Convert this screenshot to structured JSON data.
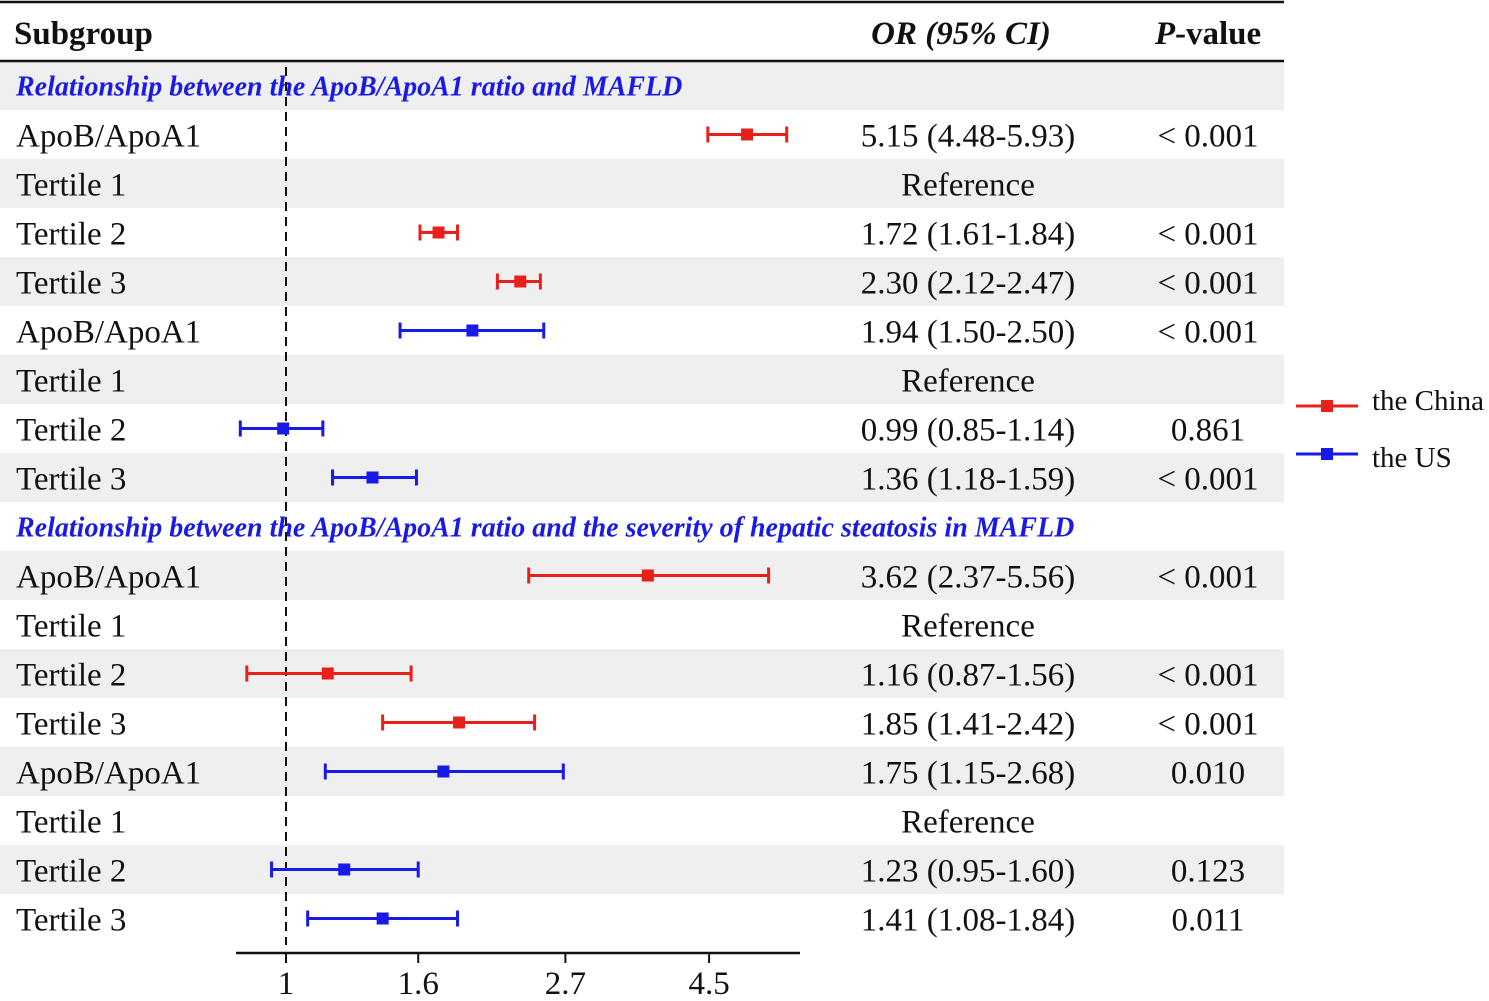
{
  "header": {
    "subgroup": "Subgroup",
    "or": "OR (95% CI)",
    "p_italic": "P",
    "p_rest": "-value"
  },
  "legend": [
    {
      "name": "the China",
      "color": "#e8201a"
    },
    {
      "name": "the US",
      "color": "#1a1ae6"
    }
  ],
  "colors": {
    "china": "#e8201a",
    "us": "#1a1ae6",
    "section_title": "#1a1ae6",
    "stripe": "#efefef"
  },
  "chart_data": {
    "type": "forest",
    "reference_line": 1,
    "x_ticks": [
      "1",
      "1.6",
      "2.7",
      "4.5"
    ],
    "x_scale": "log",
    "xlim": [
      0.82,
      5.7
    ],
    "rows": [
      {
        "kind": "section",
        "label": "Relationship between the ApoB/ApoA1 ratio and MAFLD"
      },
      {
        "kind": "data",
        "label": "ApoB/ApoA1",
        "series": "the China",
        "or": 5.15,
        "lo": 4.48,
        "hi": 5.93,
        "ci_text": "5.15 (4.48-5.93)",
        "p": "< 0.001"
      },
      {
        "kind": "ref",
        "label": "Tertile 1",
        "ci_text": "Reference",
        "p": ""
      },
      {
        "kind": "data",
        "label": "Tertile 2",
        "series": "the China",
        "or": 1.72,
        "lo": 1.61,
        "hi": 1.84,
        "ci_text": "1.72 (1.61-1.84)",
        "p": "< 0.001"
      },
      {
        "kind": "data",
        "label": "Tertile 3",
        "series": "the China",
        "or": 2.3,
        "lo": 2.12,
        "hi": 2.47,
        "ci_text": "2.30 (2.12-2.47)",
        "p": "< 0.001"
      },
      {
        "kind": "data",
        "label": "ApoB/ApoA1",
        "series": "the US",
        "or": 1.94,
        "lo": 1.5,
        "hi": 2.5,
        "ci_text": "1.94 (1.50-2.50)",
        "p": "< 0.001"
      },
      {
        "kind": "ref",
        "label": "Tertile 1",
        "ci_text": "Reference",
        "p": ""
      },
      {
        "kind": "data",
        "label": "Tertile 2",
        "series": "the US",
        "or": 0.99,
        "lo": 0.85,
        "hi": 1.14,
        "ci_text": "0.99 (0.85-1.14)",
        "p": "0.861"
      },
      {
        "kind": "data",
        "label": "Tertile 3",
        "series": "the US",
        "or": 1.36,
        "lo": 1.18,
        "hi": 1.59,
        "ci_text": "1.36 (1.18-1.59)",
        "p": "< 0.001"
      },
      {
        "kind": "section",
        "label": "Relationship between the ApoB/ApoA1 ratio and the severity of hepatic steatosis in MAFLD"
      },
      {
        "kind": "data",
        "label": "ApoB/ApoA1",
        "series": "the China",
        "or": 3.62,
        "lo": 2.37,
        "hi": 5.56,
        "ci_text": "3.62 (2.37-5.56)",
        "p": "< 0.001"
      },
      {
        "kind": "ref",
        "label": "Tertile 1",
        "ci_text": "Reference",
        "p": ""
      },
      {
        "kind": "data",
        "label": "Tertile 2",
        "series": "the China",
        "or": 1.16,
        "lo": 0.87,
        "hi": 1.56,
        "ci_text": "1.16 (0.87-1.56)",
        "p": "< 0.001"
      },
      {
        "kind": "data",
        "label": "Tertile 3",
        "series": "the China",
        "or": 1.85,
        "lo": 1.41,
        "hi": 2.42,
        "ci_text": "1.85 (1.41-2.42)",
        "p": "< 0.001"
      },
      {
        "kind": "data",
        "label": "ApoB/ApoA1",
        "series": "the US",
        "or": 1.75,
        "lo": 1.15,
        "hi": 2.68,
        "ci_text": "1.75 (1.15-2.68)",
        "p": "0.010"
      },
      {
        "kind": "ref",
        "label": "Tertile 1",
        "ci_text": "Reference",
        "p": ""
      },
      {
        "kind": "data",
        "label": "Tertile 2",
        "series": "the US",
        "or": 1.23,
        "lo": 0.95,
        "hi": 1.6,
        "ci_text": "1.23 (0.95-1.60)",
        "p": "0.123"
      },
      {
        "kind": "data",
        "label": "Tertile 3",
        "series": "the US",
        "or": 1.41,
        "lo": 1.08,
        "hi": 1.84,
        "ci_text": "1.41 (1.08-1.84)",
        "p": "0.011"
      }
    ]
  }
}
